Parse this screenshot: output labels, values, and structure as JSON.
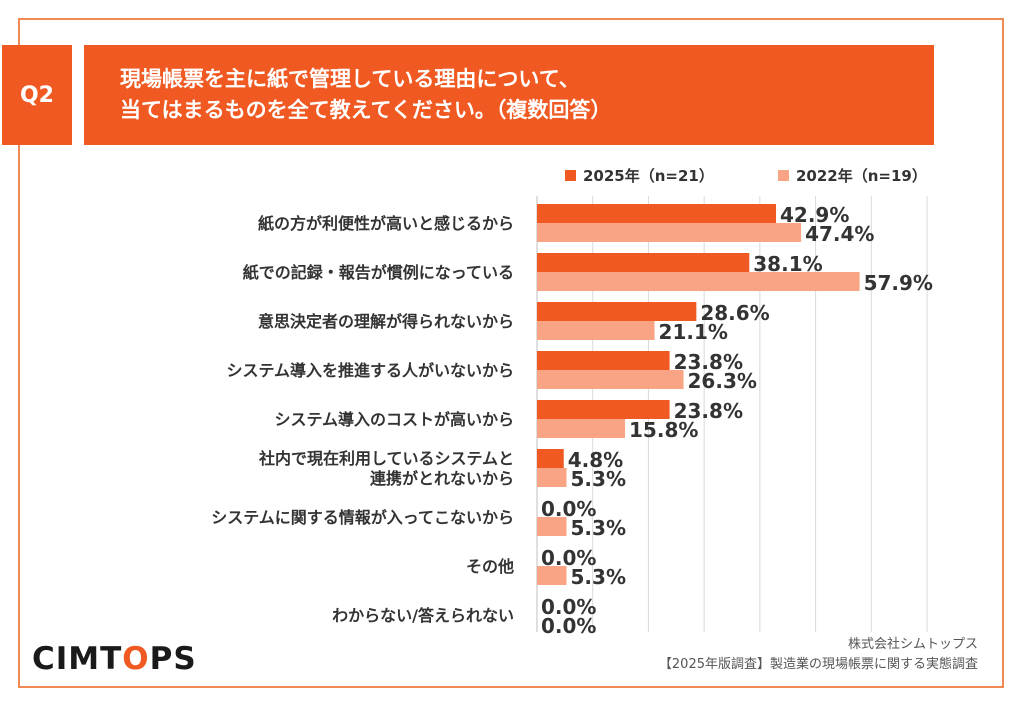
{
  "question": {
    "badge": "Q2",
    "line1": "現場帳票を主に紙で管理している理由について、",
    "line2": "当てはまるものを全て教えてください。（複数回答）"
  },
  "footer": {
    "brand_part1": "CIMT",
    "brand_o": "O",
    "brand_part2": "PS",
    "company": "株式会社シムトップス",
    "source": "【2025年版調査】製造業の現場帳票に関する実態調査"
  },
  "colors": {
    "accent": "#f05a22",
    "series_2025": "#f05a22",
    "series_2022": "#f9a585",
    "grid": "#d9d9d9",
    "label_text": "#333333"
  },
  "chart_data": {
    "type": "bar",
    "orientation": "horizontal",
    "categories": [
      [
        "紙の方が利便性が高いと感じるから"
      ],
      [
        "紙での記録・報告が慣例になっている"
      ],
      [
        "意思決定者の理解が得られないから"
      ],
      [
        "システム導入を推進する人がいないから"
      ],
      [
        "システム導入のコストが高いから"
      ],
      [
        "社内で現在利用しているシステムと",
        "連携がとれないから"
      ],
      [
        "システムに関する情報が入ってこないから"
      ],
      [
        "その他"
      ],
      [
        "わからない/答えられない"
      ]
    ],
    "series": [
      {
        "name": "2025年（n=21）",
        "values": [
          42.9,
          38.1,
          28.6,
          23.8,
          23.8,
          4.8,
          0.0,
          0.0,
          0.0
        ],
        "labels": [
          "42.9%",
          "38.1%",
          "28.6%",
          "23.8%",
          "23.8%",
          "4.8%",
          "0.0%",
          "0.0%",
          "0.0%"
        ]
      },
      {
        "name": "2022年（n=19）",
        "values": [
          47.4,
          57.9,
          21.1,
          26.3,
          15.8,
          5.3,
          5.3,
          5.3,
          0.0
        ],
        "labels": [
          "47.4%",
          "57.9%",
          "21.1%",
          "26.3%",
          "15.8%",
          "5.3%",
          "5.3%",
          "5.3%",
          "0.0%"
        ]
      }
    ],
    "xlim": [
      0,
      70
    ],
    "gridlines": [
      10,
      20,
      30,
      40,
      50,
      60,
      70
    ],
    "grid": true,
    "legend_position": "top-right",
    "unit": "%"
  }
}
